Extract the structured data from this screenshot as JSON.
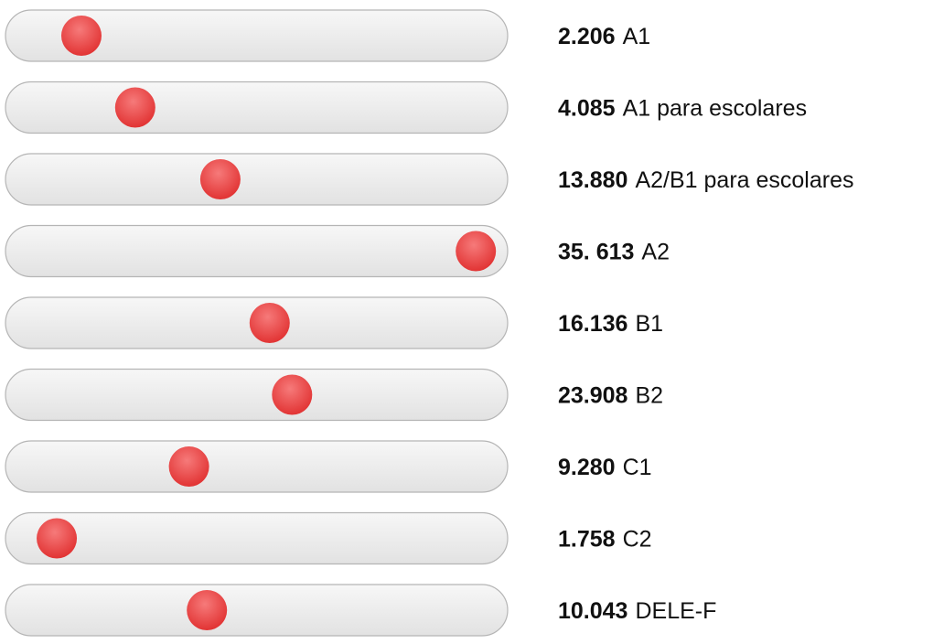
{
  "items": [
    {
      "value": "2.206",
      "label": "A1"
    },
    {
      "value": "4.085",
      "label": "A1 para escolares"
    },
    {
      "value": "13.880",
      "label": "A2/B1 para escolares"
    },
    {
      "value": "35. 613",
      "label": "A2"
    },
    {
      "value": "16.136",
      "label": "B1"
    },
    {
      "value": "23.908",
      "label": "B2"
    },
    {
      "value": "9.280",
      "label": "C1"
    },
    {
      "value": "1.758",
      "label": "C2"
    },
    {
      "value": "10.043",
      "label": "DELE-F"
    }
  ]
}
